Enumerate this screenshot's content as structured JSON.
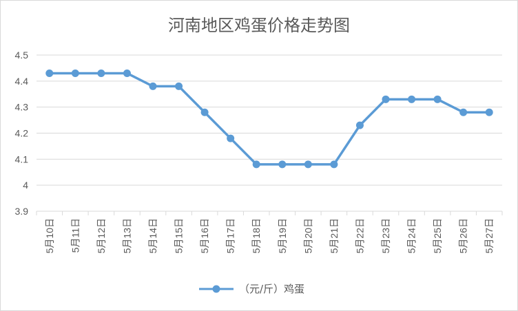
{
  "chart_data": {
    "type": "line",
    "title": "河南地区鸡蛋价格走势图",
    "categories": [
      "5月10日",
      "5月11日",
      "5月12日",
      "5月13日",
      "5月14日",
      "5月15日",
      "5月16日",
      "5月17日",
      "5月18日",
      "5月19日",
      "5月20日",
      "5月21日",
      "5月22日",
      "5月23日",
      "5月24日",
      "5月25日",
      "5月26日",
      "5月27日"
    ],
    "series": [
      {
        "name": "（元/斤）鸡蛋",
        "values": [
          4.43,
          4.43,
          4.43,
          4.43,
          4.38,
          4.38,
          4.28,
          4.18,
          4.08,
          4.08,
          4.08,
          4.08,
          4.23,
          4.33,
          4.33,
          4.33,
          4.28,
          4.28
        ]
      }
    ],
    "ylim": [
      3.9,
      4.5
    ],
    "y_ticks": [
      "3.9",
      "4",
      "4.1",
      "4.2",
      "4.3",
      "4.4",
      "4.5"
    ],
    "y_tick_values": [
      3.9,
      4.0,
      4.1,
      4.2,
      4.3,
      4.4,
      4.5
    ],
    "grid": "horizontal",
    "legend": "bottom",
    "colors": {
      "line": "#5b9bd5",
      "grid": "#d9d9d9",
      "text": "#595959"
    }
  }
}
